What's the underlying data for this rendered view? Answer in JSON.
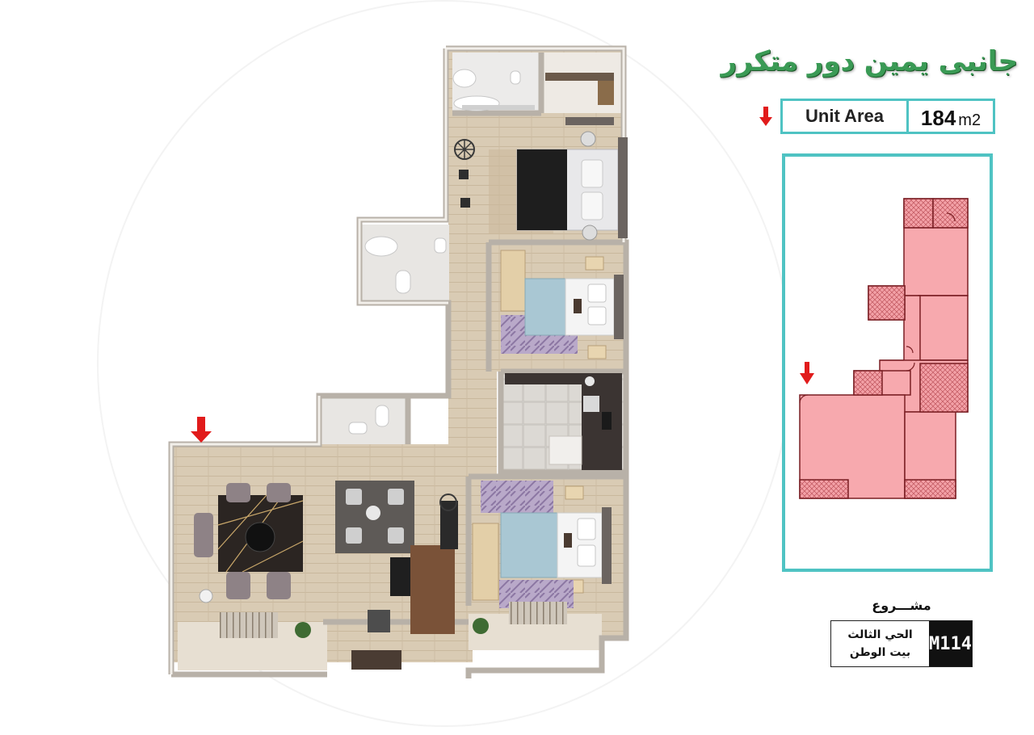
{
  "header": {
    "title": "جانبى يمين دور متكرر"
  },
  "unit_area": {
    "label": "Unit Area",
    "value": "184",
    "unit": "m2"
  },
  "project": {
    "label": "مشـــروع",
    "line1": "الحي الثالث",
    "line2": "بيت الوطن",
    "code": "M114"
  },
  "colors": {
    "accent_teal": "#4fc3c3",
    "title_green": "#3a9a55",
    "keyplan_fill": "#f7a9ae",
    "keyplan_stroke": "#7a1f24",
    "arrow_red": "#e11b1b"
  }
}
